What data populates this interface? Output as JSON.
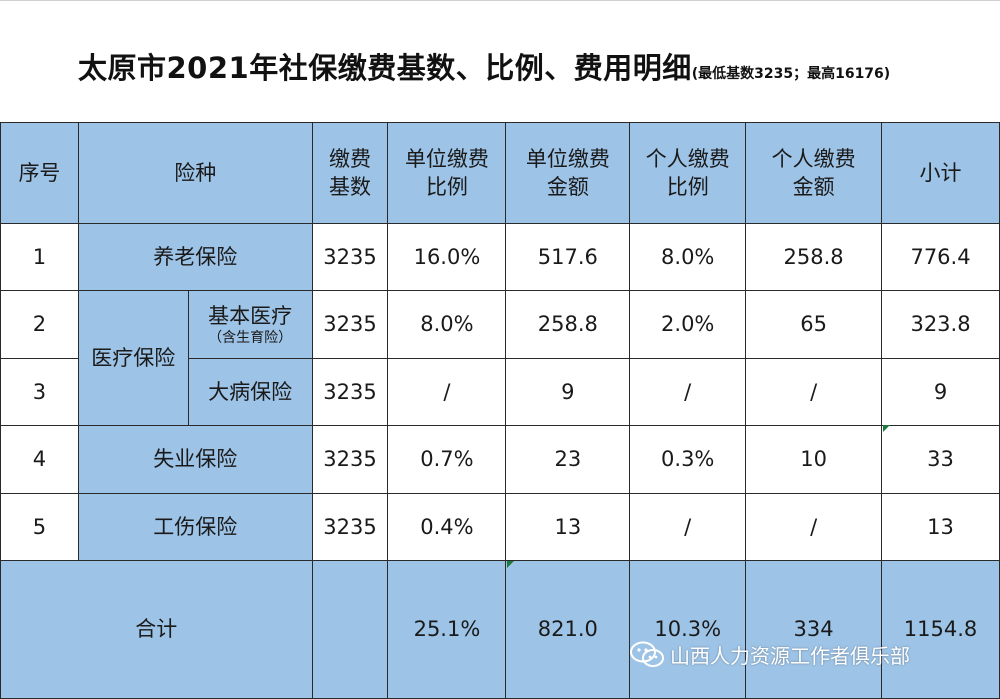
{
  "title": {
    "main": "太原市2021年社保缴费基数、比例、费用明细",
    "sub": "(最低基数3235；最高16176)"
  },
  "header": {
    "seq": "序号",
    "type": "险种",
    "base_l1": "缴费",
    "base_l2": "基数",
    "unit_ratio_l1": "单位缴费",
    "unit_ratio_l2": "比例",
    "unit_amt_l1": "单位缴费",
    "unit_amt_l2": "金额",
    "pers_ratio_l1": "个人缴费",
    "pers_ratio_l2": "比例",
    "pers_amt_l1": "个人缴费",
    "pers_amt_l2": "金额",
    "subtotal": "小计"
  },
  "rows": [
    {
      "seq": "1",
      "name": "养老保险",
      "base": "3235",
      "unit_ratio": "16.0%",
      "unit_amt": "517.6",
      "pers_ratio": "8.0%",
      "pers_amt": "258.8",
      "subtotal": "776.4"
    },
    {
      "seq": "2",
      "group": "医疗保险",
      "name": "基本医疗",
      "note": "（含生育险）",
      "base": "3235",
      "unit_ratio": "8.0%",
      "unit_amt": "258.8",
      "pers_ratio": "2.0%",
      "pers_amt": "65",
      "subtotal": "323.8"
    },
    {
      "seq": "3",
      "name": "大病保险",
      "base": "3235",
      "unit_ratio": "/",
      "unit_amt": "9",
      "pers_ratio": "/",
      "pers_amt": "/",
      "subtotal": "9"
    },
    {
      "seq": "4",
      "name": "失业保险",
      "base": "3235",
      "unit_ratio": "0.7%",
      "unit_amt": "23",
      "pers_ratio": "0.3%",
      "pers_amt": "10",
      "subtotal": "33"
    },
    {
      "seq": "5",
      "name": "工伤保险",
      "base": "3235",
      "unit_ratio": "0.4%",
      "unit_amt": "13",
      "pers_ratio": "/",
      "pers_amt": "/",
      "subtotal": "13"
    }
  ],
  "total": {
    "label": "合计",
    "unit_ratio": "25.1%",
    "unit_amt": "821.0",
    "pers_ratio": "10.3%",
    "pers_amt": "334",
    "subtotal": "1154.8"
  },
  "watermark": {
    "text": "山西人力资源工作者俱乐部",
    "icon": "wechat-icon"
  },
  "colors": {
    "header_fill": "#9dc3e6",
    "border": "#2a2a2a"
  }
}
